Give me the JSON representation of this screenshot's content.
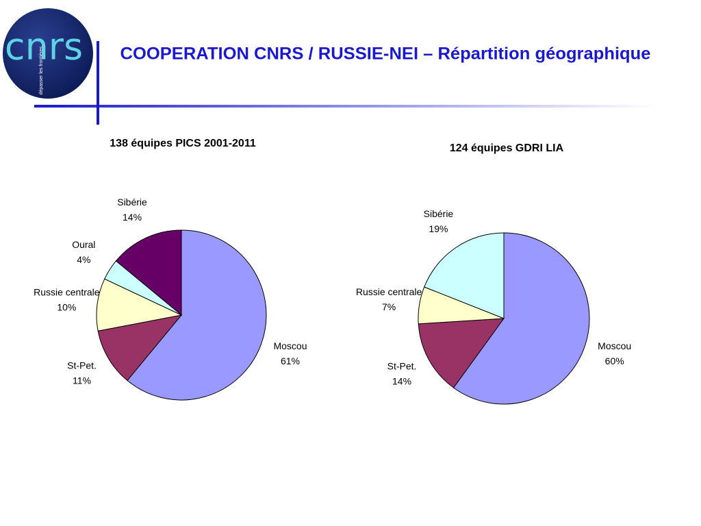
{
  "header": {
    "title": "COOPERATION CNRS / RUSSIE-NEI – Répartition géographique",
    "logo": "cnrs",
    "logo_tagline": "dépasser les frontières"
  },
  "chart_data": [
    {
      "type": "pie",
      "title": "138 équipes PICS 2001-2011",
      "categories": [
        "Moscou",
        "St-Pet.",
        "Russie centrale",
        "Oural",
        "Sibérie"
      ],
      "values": [
        61,
        11,
        10,
        4,
        14
      ],
      "value_labels": [
        "61%",
        "11%",
        "10%",
        "4%",
        "14%"
      ],
      "colors": [
        "#9999ff",
        "#993366",
        "#ffffcc",
        "#ccffff",
        "#660066"
      ]
    },
    {
      "type": "pie",
      "title": "124 équipes GDRI LIA",
      "categories": [
        "Moscou",
        "St-Pet.",
        "Russie centrale",
        "Sibérie"
      ],
      "values": [
        60,
        14,
        7,
        19
      ],
      "value_labels": [
        "60%",
        "14%",
        "7%",
        "19%"
      ],
      "colors": [
        "#9999ff",
        "#993366",
        "#ffffcc",
        "#ccffff"
      ]
    }
  ]
}
